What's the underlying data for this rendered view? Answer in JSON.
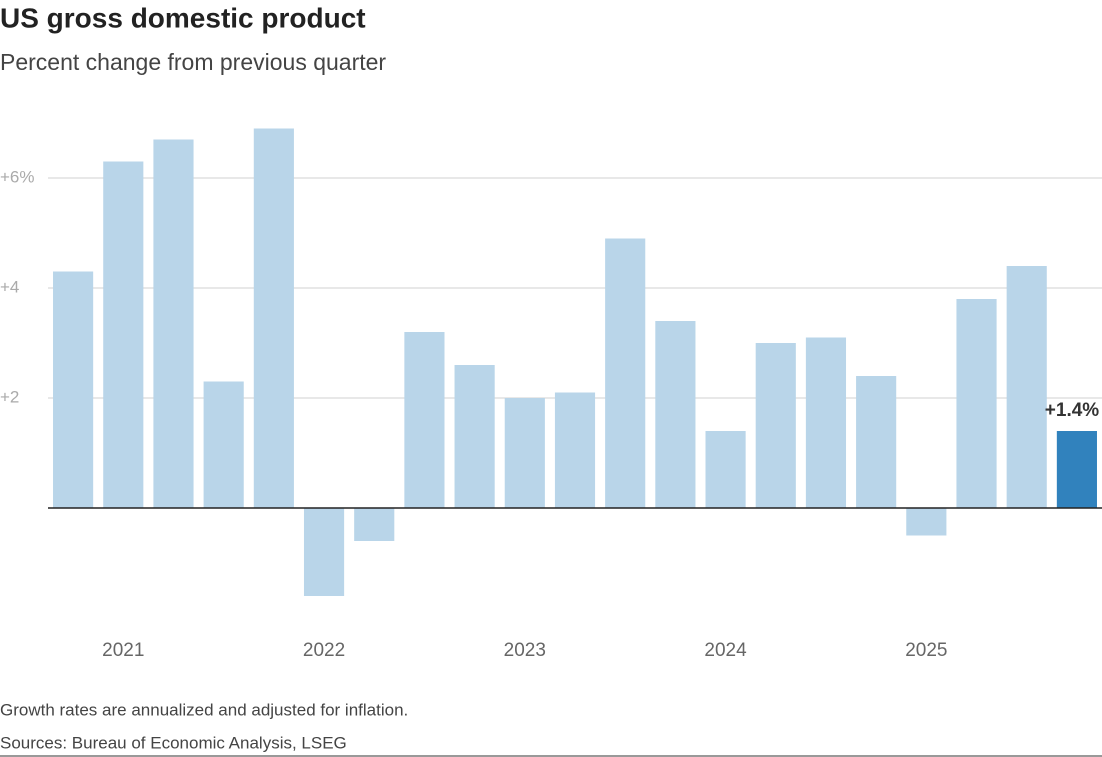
{
  "chart_data": {
    "type": "bar",
    "title": "US gross domestic product",
    "subtitle": "Percent change from previous quarter",
    "notes": [
      "Growth rates are annualized and adjusted for inflation.",
      "Sources: Bureau of Economic Analysis, LSEG"
    ],
    "categories": [
      null,
      "2021",
      null,
      null,
      null,
      "2022",
      null,
      null,
      null,
      "2023",
      null,
      null,
      null,
      "2024",
      null,
      null,
      null,
      "2025",
      null,
      null,
      null
    ],
    "values": [
      4.3,
      6.3,
      6.7,
      2.3,
      6.9,
      -1.6,
      -0.6,
      3.2,
      2.6,
      2.0,
      2.1,
      4.9,
      3.4,
      1.4,
      3.0,
      3.1,
      2.4,
      -0.5,
      3.8,
      4.4,
      1.4
    ],
    "value_labels": [
      null,
      null,
      null,
      null,
      null,
      null,
      null,
      null,
      null,
      null,
      null,
      null,
      null,
      null,
      null,
      null,
      null,
      null,
      null,
      null,
      "+1.4%"
    ],
    "colors": [
      "#b9d5e9",
      "#b9d5e9",
      "#b9d5e9",
      "#b9d5e9",
      "#b9d5e9",
      "#b9d5e9",
      "#b9d5e9",
      "#b9d5e9",
      "#b9d5e9",
      "#b9d5e9",
      "#b9d5e9",
      "#b9d5e9",
      "#b9d5e9",
      "#b9d5e9",
      "#b9d5e9",
      "#b9d5e9",
      "#b9d5e9",
      "#b9d5e9",
      "#b9d5e9",
      "#b9d5e9",
      "#3182bd"
    ],
    "ylim": [
      -2,
      7.2
    ],
    "yticks": [
      {
        "value": 2,
        "label": "+2"
      },
      {
        "value": 4,
        "label": "+4"
      },
      {
        "value": 6,
        "label": "+6%"
      }
    ],
    "grid": true
  }
}
